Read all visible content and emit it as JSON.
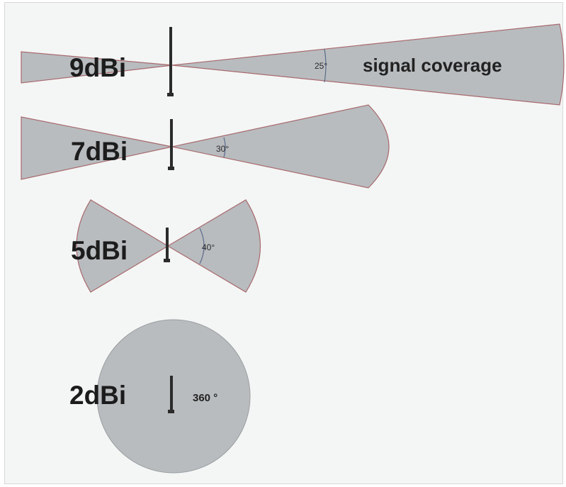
{
  "caption": "signal coverage",
  "patterns": [
    {
      "id": "9dbi",
      "gain": "9dBi",
      "angle": "25°"
    },
    {
      "id": "7dbi",
      "gain": "7dBi",
      "angle": "30°"
    },
    {
      "id": "5dbi",
      "gain": "5dBi",
      "angle": "40°"
    },
    {
      "id": "2dbi",
      "gain": "2dBi",
      "angle": "360 °"
    }
  ]
}
